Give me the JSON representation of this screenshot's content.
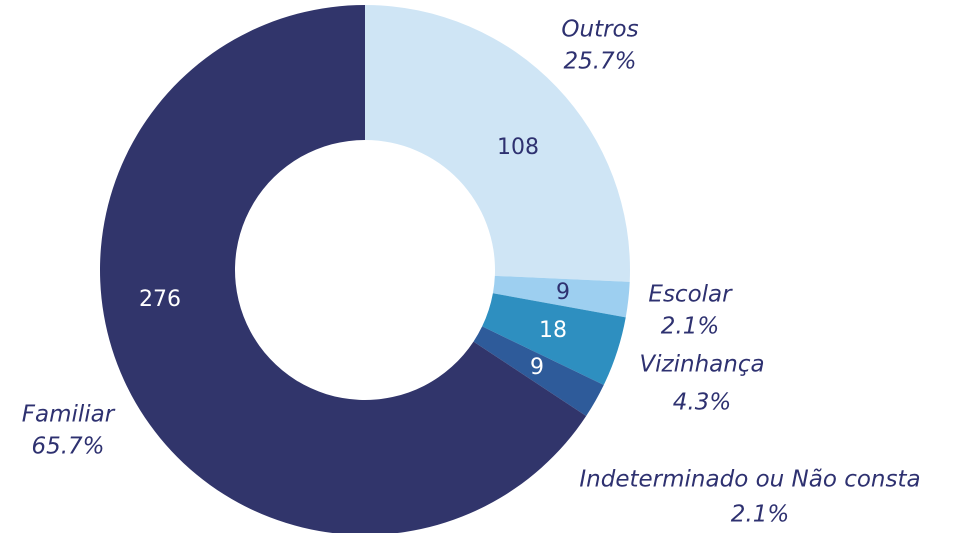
{
  "chart_data": {
    "type": "donut",
    "categories": [
      "Outros",
      "Escolar",
      "Vizinhança",
      "Indeterminado ou Não consta",
      "Familiar"
    ],
    "values": [
      108,
      9,
      18,
      9,
      276
    ],
    "percent_labels": [
      "25.7%",
      "2.1%",
      "4.3%",
      "2.1%",
      "65.7%"
    ],
    "colors": [
      "#cfe5f5",
      "#9dcff0",
      "#2e8fc0",
      "#2e5b9a",
      "#31356b"
    ]
  }
}
